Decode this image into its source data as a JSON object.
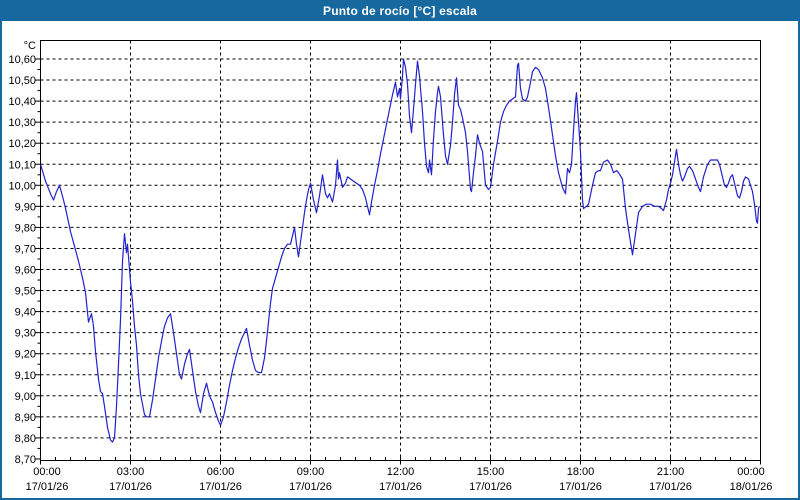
{
  "window": {
    "title": "Punto de rocío [°C] escala"
  },
  "colors": {
    "titlebar_bg": "#17689E",
    "window_border": "#17689E",
    "plot_bg": "#FFFFFF",
    "grid": "#000000",
    "frame": "#000000",
    "line": "#2222CE",
    "title_text": "#FFFFFF",
    "axis_text": "#000000"
  },
  "chart_data": {
    "type": "line",
    "title": "Punto de rocío [°C] escala",
    "y_axis_unit": "°C",
    "xlabel": "",
    "ylabel": "°C",
    "ylim": [
      8.7,
      10.6
    ],
    "xlim_minutes": [
      0,
      1440
    ],
    "grid": "dashed",
    "legend": "none",
    "y_tick_values": [
      10.6,
      10.5,
      10.4,
      10.3,
      10.2,
      10.1,
      10.0,
      9.9,
      9.8,
      9.7,
      9.6,
      9.5,
      9.4,
      9.3,
      9.2,
      9.1,
      9.0,
      8.9,
      8.8,
      8.7
    ],
    "y_tick_labels": [
      "10,60",
      "10,50",
      "10,40",
      "10,30",
      "10,20",
      "10,10",
      "10,00",
      "9,90",
      "9,80",
      "9,70",
      "9,60",
      "9,50",
      "9,40",
      "9,30",
      "9,20",
      "9,10",
      "9,00",
      "8,90",
      "8,80",
      "8,70"
    ],
    "x_ticks": [
      {
        "time": "00:00",
        "date": "17/01/26",
        "minute": 0
      },
      {
        "time": "03:00",
        "date": "17/01/26",
        "minute": 180
      },
      {
        "time": "06:00",
        "date": "17/01/26",
        "minute": 360
      },
      {
        "time": "09:00",
        "date": "17/01/26",
        "minute": 540
      },
      {
        "time": "12:00",
        "date": "17/01/26",
        "minute": 720
      },
      {
        "time": "15:00",
        "date": "17/01/26",
        "minute": 900
      },
      {
        "time": "18:00",
        "date": "17/01/26",
        "minute": 1080
      },
      {
        "time": "21:00",
        "date": "17/01/26",
        "minute": 1260
      },
      {
        "time": "00:00",
        "date": "18/01/26",
        "minute": 1440
      }
    ],
    "series": [
      {
        "name": "Punto de rocío",
        "color": "#2222CE",
        "points": [
          [
            0,
            10.1
          ],
          [
            10,
            10.02
          ],
          [
            20,
            9.96
          ],
          [
            26,
            9.93
          ],
          [
            32,
            9.97
          ],
          [
            38,
            10.0
          ],
          [
            46,
            9.93
          ],
          [
            52,
            9.87
          ],
          [
            60,
            9.78
          ],
          [
            68,
            9.71
          ],
          [
            76,
            9.64
          ],
          [
            84,
            9.56
          ],
          [
            90,
            9.49
          ],
          [
            96,
            9.35
          ],
          [
            102,
            9.39
          ],
          [
            106,
            9.33
          ],
          [
            110,
            9.21
          ],
          [
            116,
            9.08
          ],
          [
            120,
            9.02
          ],
          [
            124,
            9.01
          ],
          [
            128,
            8.95
          ],
          [
            134,
            8.85
          ],
          [
            140,
            8.79
          ],
          [
            144,
            8.78
          ],
          [
            148,
            8.8
          ],
          [
            152,
            8.95
          ],
          [
            156,
            9.15
          ],
          [
            160,
            9.36
          ],
          [
            164,
            9.64
          ],
          [
            168,
            9.77
          ],
          [
            172,
            9.68
          ],
          [
            174,
            9.72
          ],
          [
            178,
            9.6
          ],
          [
            180,
            9.54
          ],
          [
            184,
            9.45
          ],
          [
            188,
            9.33
          ],
          [
            192,
            9.24
          ],
          [
            196,
            9.1
          ],
          [
            200,
            9.01
          ],
          [
            204,
            8.96
          ],
          [
            208,
            8.91
          ],
          [
            212,
            8.9
          ],
          [
            218,
            8.9
          ],
          [
            224,
            8.98
          ],
          [
            230,
            9.08
          ],
          [
            236,
            9.18
          ],
          [
            242,
            9.26
          ],
          [
            248,
            9.33
          ],
          [
            254,
            9.37
          ],
          [
            260,
            9.39
          ],
          [
            266,
            9.3
          ],
          [
            272,
            9.2
          ],
          [
            278,
            9.1
          ],
          [
            282,
            9.08
          ],
          [
            288,
            9.15
          ],
          [
            294,
            9.2
          ],
          [
            298,
            9.22
          ],
          [
            304,
            9.12
          ],
          [
            310,
            9.02
          ],
          [
            316,
            8.95
          ],
          [
            320,
            8.92
          ],
          [
            326,
            9.01
          ],
          [
            332,
            9.06
          ],
          [
            338,
            9.0
          ],
          [
            344,
            8.97
          ],
          [
            350,
            8.92
          ],
          [
            356,
            8.88
          ],
          [
            360,
            8.86
          ],
          [
            366,
            8.9
          ],
          [
            372,
            8.97
          ],
          [
            378,
            9.05
          ],
          [
            384,
            9.12
          ],
          [
            390,
            9.18
          ],
          [
            396,
            9.23
          ],
          [
            402,
            9.27
          ],
          [
            408,
            9.3
          ],
          [
            412,
            9.32
          ],
          [
            418,
            9.24
          ],
          [
            424,
            9.17
          ],
          [
            430,
            9.12
          ],
          [
            436,
            9.11
          ],
          [
            442,
            9.11
          ],
          [
            448,
            9.18
          ],
          [
            452,
            9.26
          ],
          [
            456,
            9.35
          ],
          [
            460,
            9.44
          ],
          [
            464,
            9.51
          ],
          [
            470,
            9.56
          ],
          [
            476,
            9.61
          ],
          [
            482,
            9.66
          ],
          [
            488,
            9.7
          ],
          [
            494,
            9.72
          ],
          [
            500,
            9.72
          ],
          [
            504,
            9.76
          ],
          [
            508,
            9.8
          ],
          [
            512,
            9.72
          ],
          [
            516,
            9.66
          ],
          [
            520,
            9.73
          ],
          [
            524,
            9.8
          ],
          [
            528,
            9.87
          ],
          [
            532,
            9.93
          ],
          [
            536,
            9.98
          ],
          [
            540,
            10.01
          ],
          [
            546,
            9.93
          ],
          [
            552,
            9.87
          ],
          [
            558,
            9.95
          ],
          [
            564,
            10.05
          ],
          [
            570,
            9.96
          ],
          [
            574,
            9.94
          ],
          [
            578,
            9.96
          ],
          [
            584,
            9.92
          ],
          [
            590,
            10.0
          ],
          [
            594,
            10.12
          ],
          [
            596,
            10.03
          ],
          [
            598,
            10.06
          ],
          [
            604,
            9.99
          ],
          [
            610,
            10.01
          ],
          [
            614,
            10.04
          ],
          [
            620,
            10.03
          ],
          [
            626,
            10.02
          ],
          [
            632,
            10.01
          ],
          [
            638,
            10.0
          ],
          [
            644,
            9.98
          ],
          [
            650,
            9.94
          ],
          [
            654,
            9.9
          ],
          [
            658,
            9.86
          ],
          [
            662,
            9.92
          ],
          [
            668,
            10.0
          ],
          [
            674,
            10.07
          ],
          [
            680,
            10.15
          ],
          [
            686,
            10.22
          ],
          [
            692,
            10.29
          ],
          [
            698,
            10.36
          ],
          [
            704,
            10.43
          ],
          [
            710,
            10.49
          ],
          [
            714,
            10.42
          ],
          [
            718,
            10.46
          ],
          [
            720,
            10.41
          ],
          [
            724,
            10.52
          ],
          [
            726,
            10.6
          ],
          [
            730,
            10.56
          ],
          [
            734,
            10.48
          ],
          [
            738,
            10.33
          ],
          [
            742,
            10.25
          ],
          [
            746,
            10.36
          ],
          [
            750,
            10.48
          ],
          [
            754,
            10.59
          ],
          [
            758,
            10.52
          ],
          [
            760,
            10.46
          ],
          [
            764,
            10.35
          ],
          [
            768,
            10.2
          ],
          [
            772,
            10.09
          ],
          [
            776,
            10.06
          ],
          [
            778,
            10.12
          ],
          [
            782,
            10.05
          ],
          [
            786,
            10.22
          ],
          [
            790,
            10.35
          ],
          [
            794,
            10.44
          ],
          [
            796,
            10.47
          ],
          [
            800,
            10.42
          ],
          [
            806,
            10.24
          ],
          [
            810,
            10.14
          ],
          [
            814,
            10.1
          ],
          [
            820,
            10.19
          ],
          [
            824,
            10.3
          ],
          [
            828,
            10.43
          ],
          [
            832,
            10.51
          ],
          [
            836,
            10.38
          ],
          [
            840,
            10.36
          ],
          [
            844,
            10.32
          ],
          [
            850,
            10.25
          ],
          [
            854,
            10.16
          ],
          [
            860,
            9.98
          ],
          [
            862,
            9.97
          ],
          [
            866,
            10.06
          ],
          [
            870,
            10.14
          ],
          [
            874,
            10.24
          ],
          [
            878,
            10.2
          ],
          [
            884,
            10.16
          ],
          [
            890,
            10.0
          ],
          [
            896,
            9.98
          ],
          [
            900,
            9.99
          ],
          [
            906,
            10.1
          ],
          [
            914,
            10.21
          ],
          [
            920,
            10.3
          ],
          [
            926,
            10.35
          ],
          [
            932,
            10.38
          ],
          [
            938,
            10.4
          ],
          [
            944,
            10.41
          ],
          [
            950,
            10.42
          ],
          [
            954,
            10.57
          ],
          [
            956,
            10.58
          ],
          [
            960,
            10.46
          ],
          [
            964,
            10.41
          ],
          [
            970,
            10.4
          ],
          [
            974,
            10.42
          ],
          [
            980,
            10.49
          ],
          [
            984,
            10.54
          ],
          [
            990,
            10.56
          ],
          [
            996,
            10.55
          ],
          [
            1004,
            10.51
          ],
          [
            1010,
            10.46
          ],
          [
            1016,
            10.37
          ],
          [
            1024,
            10.24
          ],
          [
            1030,
            10.14
          ],
          [
            1036,
            10.06
          ],
          [
            1044,
            9.99
          ],
          [
            1050,
            9.96
          ],
          [
            1054,
            10.08
          ],
          [
            1058,
            10.06
          ],
          [
            1062,
            10.1
          ],
          [
            1066,
            10.26
          ],
          [
            1070,
            10.4
          ],
          [
            1072,
            10.44
          ],
          [
            1076,
            10.3
          ],
          [
            1080,
            10.16
          ],
          [
            1084,
            9.93
          ],
          [
            1086,
            9.89
          ],
          [
            1092,
            9.9
          ],
          [
            1096,
            9.91
          ],
          [
            1104,
            10.0
          ],
          [
            1110,
            10.06
          ],
          [
            1116,
            10.07
          ],
          [
            1120,
            10.07
          ],
          [
            1126,
            10.11
          ],
          [
            1134,
            10.12
          ],
          [
            1140,
            10.1
          ],
          [
            1146,
            10.06
          ],
          [
            1152,
            10.07
          ],
          [
            1156,
            10.06
          ],
          [
            1164,
            10.03
          ],
          [
            1170,
            9.89
          ],
          [
            1176,
            9.79
          ],
          [
            1180,
            9.73
          ],
          [
            1184,
            9.67
          ],
          [
            1190,
            9.77
          ],
          [
            1196,
            9.87
          ],
          [
            1204,
            9.9
          ],
          [
            1212,
            9.91
          ],
          [
            1220,
            9.91
          ],
          [
            1228,
            9.9
          ],
          [
            1236,
            9.9
          ],
          [
            1242,
            9.89
          ],
          [
            1246,
            9.88
          ],
          [
            1252,
            9.93
          ],
          [
            1256,
            9.98
          ],
          [
            1260,
            10.01
          ],
          [
            1264,
            10.05
          ],
          [
            1268,
            10.11
          ],
          [
            1272,
            10.17
          ],
          [
            1276,
            10.1
          ],
          [
            1280,
            10.05
          ],
          [
            1284,
            10.02
          ],
          [
            1288,
            10.04
          ],
          [
            1294,
            10.08
          ],
          [
            1298,
            10.09
          ],
          [
            1304,
            10.07
          ],
          [
            1310,
            10.03
          ],
          [
            1316,
            9.99
          ],
          [
            1320,
            9.97
          ],
          [
            1326,
            10.04
          ],
          [
            1334,
            10.1
          ],
          [
            1340,
            10.12
          ],
          [
            1348,
            10.12
          ],
          [
            1354,
            10.12
          ],
          [
            1358,
            10.1
          ],
          [
            1364,
            10.04
          ],
          [
            1368,
            10.0
          ],
          [
            1372,
            9.99
          ],
          [
            1376,
            10.01
          ],
          [
            1380,
            10.04
          ],
          [
            1384,
            10.05
          ],
          [
            1390,
            9.99
          ],
          [
            1394,
            9.95
          ],
          [
            1398,
            9.94
          ],
          [
            1402,
            9.97
          ],
          [
            1406,
            10.02
          ],
          [
            1410,
            10.04
          ],
          [
            1416,
            10.03
          ],
          [
            1420,
            10.0
          ],
          [
            1424,
            9.97
          ],
          [
            1428,
            9.91
          ],
          [
            1432,
            9.83
          ],
          [
            1434,
            9.82
          ],
          [
            1436,
            9.89
          ],
          [
            1438,
            9.9
          ]
        ]
      }
    ]
  }
}
